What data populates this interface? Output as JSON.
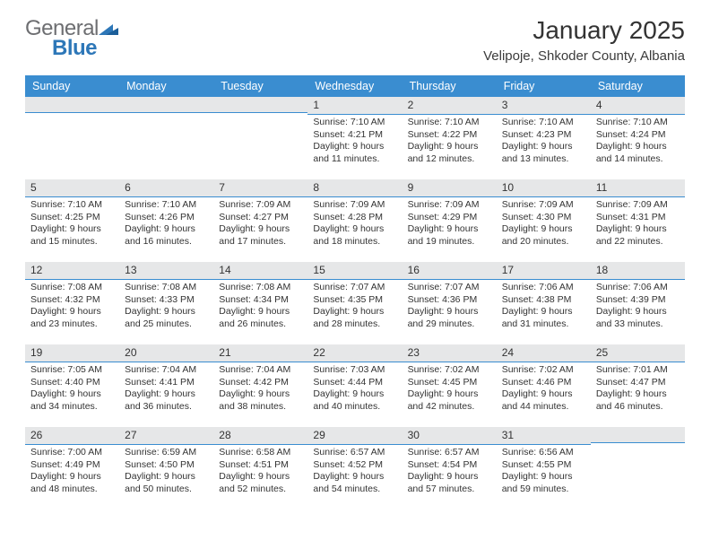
{
  "brand": {
    "line1": "General",
    "line2": "Blue"
  },
  "title": "January 2025",
  "location": "Velipoje, Shkoder County, Albania",
  "colors": {
    "header_bar": "#3a8dd0",
    "strip_bg": "#e6e7e8",
    "strip_border": "#3a8dd0",
    "text": "#333333",
    "logo_gray": "#6d6e71",
    "logo_blue": "#2d77b8",
    "page_bg": "#ffffff"
  },
  "day_headers": [
    "Sunday",
    "Monday",
    "Tuesday",
    "Wednesday",
    "Thursday",
    "Friday",
    "Saturday"
  ],
  "weeks": [
    [
      null,
      null,
      null,
      {
        "n": "1",
        "sunrise": "Sunrise: 7:10 AM",
        "sunset": "Sunset: 4:21 PM",
        "dl1": "Daylight: 9 hours",
        "dl2": "and 11 minutes."
      },
      {
        "n": "2",
        "sunrise": "Sunrise: 7:10 AM",
        "sunset": "Sunset: 4:22 PM",
        "dl1": "Daylight: 9 hours",
        "dl2": "and 12 minutes."
      },
      {
        "n": "3",
        "sunrise": "Sunrise: 7:10 AM",
        "sunset": "Sunset: 4:23 PM",
        "dl1": "Daylight: 9 hours",
        "dl2": "and 13 minutes."
      },
      {
        "n": "4",
        "sunrise": "Sunrise: 7:10 AM",
        "sunset": "Sunset: 4:24 PM",
        "dl1": "Daylight: 9 hours",
        "dl2": "and 14 minutes."
      }
    ],
    [
      {
        "n": "5",
        "sunrise": "Sunrise: 7:10 AM",
        "sunset": "Sunset: 4:25 PM",
        "dl1": "Daylight: 9 hours",
        "dl2": "and 15 minutes."
      },
      {
        "n": "6",
        "sunrise": "Sunrise: 7:10 AM",
        "sunset": "Sunset: 4:26 PM",
        "dl1": "Daylight: 9 hours",
        "dl2": "and 16 minutes."
      },
      {
        "n": "7",
        "sunrise": "Sunrise: 7:09 AM",
        "sunset": "Sunset: 4:27 PM",
        "dl1": "Daylight: 9 hours",
        "dl2": "and 17 minutes."
      },
      {
        "n": "8",
        "sunrise": "Sunrise: 7:09 AM",
        "sunset": "Sunset: 4:28 PM",
        "dl1": "Daylight: 9 hours",
        "dl2": "and 18 minutes."
      },
      {
        "n": "9",
        "sunrise": "Sunrise: 7:09 AM",
        "sunset": "Sunset: 4:29 PM",
        "dl1": "Daylight: 9 hours",
        "dl2": "and 19 minutes."
      },
      {
        "n": "10",
        "sunrise": "Sunrise: 7:09 AM",
        "sunset": "Sunset: 4:30 PM",
        "dl1": "Daylight: 9 hours",
        "dl2": "and 20 minutes."
      },
      {
        "n": "11",
        "sunrise": "Sunrise: 7:09 AM",
        "sunset": "Sunset: 4:31 PM",
        "dl1": "Daylight: 9 hours",
        "dl2": "and 22 minutes."
      }
    ],
    [
      {
        "n": "12",
        "sunrise": "Sunrise: 7:08 AM",
        "sunset": "Sunset: 4:32 PM",
        "dl1": "Daylight: 9 hours",
        "dl2": "and 23 minutes."
      },
      {
        "n": "13",
        "sunrise": "Sunrise: 7:08 AM",
        "sunset": "Sunset: 4:33 PM",
        "dl1": "Daylight: 9 hours",
        "dl2": "and 25 minutes."
      },
      {
        "n": "14",
        "sunrise": "Sunrise: 7:08 AM",
        "sunset": "Sunset: 4:34 PM",
        "dl1": "Daylight: 9 hours",
        "dl2": "and 26 minutes."
      },
      {
        "n": "15",
        "sunrise": "Sunrise: 7:07 AM",
        "sunset": "Sunset: 4:35 PM",
        "dl1": "Daylight: 9 hours",
        "dl2": "and 28 minutes."
      },
      {
        "n": "16",
        "sunrise": "Sunrise: 7:07 AM",
        "sunset": "Sunset: 4:36 PM",
        "dl1": "Daylight: 9 hours",
        "dl2": "and 29 minutes."
      },
      {
        "n": "17",
        "sunrise": "Sunrise: 7:06 AM",
        "sunset": "Sunset: 4:38 PM",
        "dl1": "Daylight: 9 hours",
        "dl2": "and 31 minutes."
      },
      {
        "n": "18",
        "sunrise": "Sunrise: 7:06 AM",
        "sunset": "Sunset: 4:39 PM",
        "dl1": "Daylight: 9 hours",
        "dl2": "and 33 minutes."
      }
    ],
    [
      {
        "n": "19",
        "sunrise": "Sunrise: 7:05 AM",
        "sunset": "Sunset: 4:40 PM",
        "dl1": "Daylight: 9 hours",
        "dl2": "and 34 minutes."
      },
      {
        "n": "20",
        "sunrise": "Sunrise: 7:04 AM",
        "sunset": "Sunset: 4:41 PM",
        "dl1": "Daylight: 9 hours",
        "dl2": "and 36 minutes."
      },
      {
        "n": "21",
        "sunrise": "Sunrise: 7:04 AM",
        "sunset": "Sunset: 4:42 PM",
        "dl1": "Daylight: 9 hours",
        "dl2": "and 38 minutes."
      },
      {
        "n": "22",
        "sunrise": "Sunrise: 7:03 AM",
        "sunset": "Sunset: 4:44 PM",
        "dl1": "Daylight: 9 hours",
        "dl2": "and 40 minutes."
      },
      {
        "n": "23",
        "sunrise": "Sunrise: 7:02 AM",
        "sunset": "Sunset: 4:45 PM",
        "dl1": "Daylight: 9 hours",
        "dl2": "and 42 minutes."
      },
      {
        "n": "24",
        "sunrise": "Sunrise: 7:02 AM",
        "sunset": "Sunset: 4:46 PM",
        "dl1": "Daylight: 9 hours",
        "dl2": "and 44 minutes."
      },
      {
        "n": "25",
        "sunrise": "Sunrise: 7:01 AM",
        "sunset": "Sunset: 4:47 PM",
        "dl1": "Daylight: 9 hours",
        "dl2": "and 46 minutes."
      }
    ],
    [
      {
        "n": "26",
        "sunrise": "Sunrise: 7:00 AM",
        "sunset": "Sunset: 4:49 PM",
        "dl1": "Daylight: 9 hours",
        "dl2": "and 48 minutes."
      },
      {
        "n": "27",
        "sunrise": "Sunrise: 6:59 AM",
        "sunset": "Sunset: 4:50 PM",
        "dl1": "Daylight: 9 hours",
        "dl2": "and 50 minutes."
      },
      {
        "n": "28",
        "sunrise": "Sunrise: 6:58 AM",
        "sunset": "Sunset: 4:51 PM",
        "dl1": "Daylight: 9 hours",
        "dl2": "and 52 minutes."
      },
      {
        "n": "29",
        "sunrise": "Sunrise: 6:57 AM",
        "sunset": "Sunset: 4:52 PM",
        "dl1": "Daylight: 9 hours",
        "dl2": "and 54 minutes."
      },
      {
        "n": "30",
        "sunrise": "Sunrise: 6:57 AM",
        "sunset": "Sunset: 4:54 PM",
        "dl1": "Daylight: 9 hours",
        "dl2": "and 57 minutes."
      },
      {
        "n": "31",
        "sunrise": "Sunrise: 6:56 AM",
        "sunset": "Sunset: 4:55 PM",
        "dl1": "Daylight: 9 hours",
        "dl2": "and 59 minutes."
      },
      null
    ]
  ]
}
